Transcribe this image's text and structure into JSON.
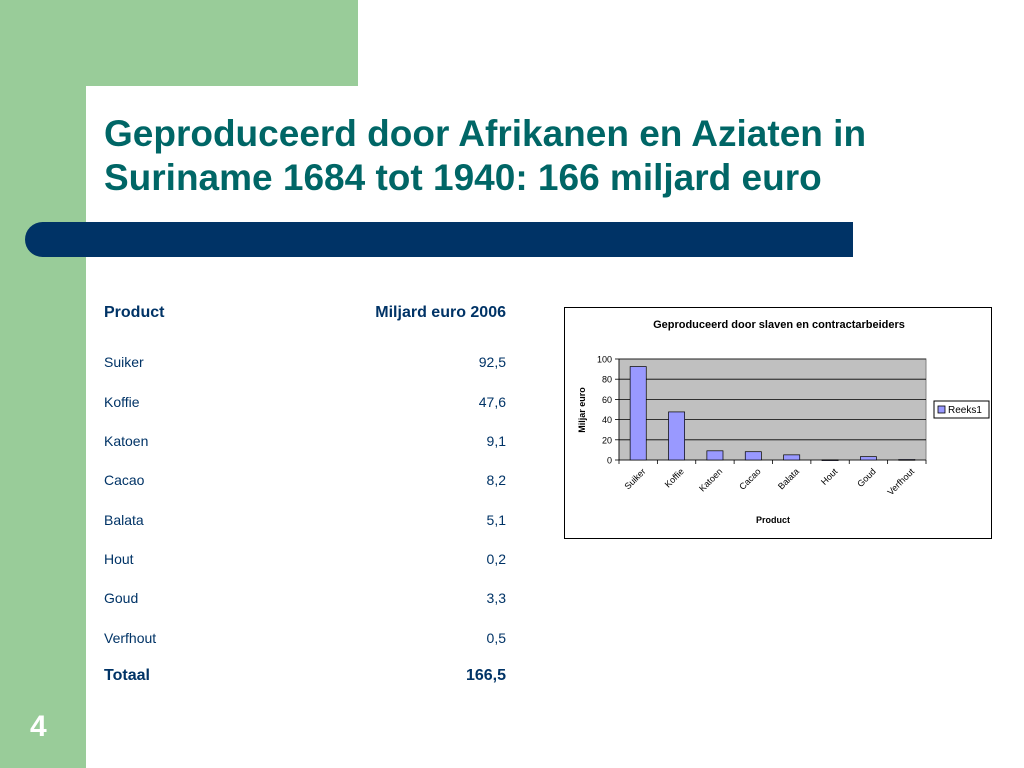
{
  "slide": {
    "title": "Geproduceerd door Afrikanen en Aziaten in Suriname 1684 tot 1940: 166 miljard euro",
    "page_number": "4"
  },
  "table": {
    "header": {
      "product": "Product",
      "value": "Miljard euro 2006"
    },
    "rows": [
      {
        "product": "Suiker",
        "value": "92,5"
      },
      {
        "product": "Koffie",
        "value": "47,6"
      },
      {
        "product": "Katoen",
        "value": "9,1"
      },
      {
        "product": "Cacao",
        "value": "8,2"
      },
      {
        "product": "Balata",
        "value": "5,1"
      },
      {
        "product": "Hout",
        "value": "0,2"
      },
      {
        "product": "Goud",
        "value": "3,3"
      },
      {
        "product": "Verfhout",
        "value": "0,5"
      }
    ],
    "total": {
      "label": "Totaal",
      "value": "166,5"
    }
  },
  "colors": {
    "accent_green": "#99cc99",
    "title_teal": "#006666",
    "band_navy": "#003366",
    "bar_fill": "#9999ff",
    "plot_bg": "#c0c0c0"
  },
  "chart_data": {
    "type": "bar",
    "title": "Geproduceerd door slaven en contractarbeiders",
    "xlabel": "Product",
    "ylabel": "Miljar euro",
    "categories": [
      "Suiker",
      "Koffie",
      "Katoen",
      "Cacao",
      "Balata",
      "Hout",
      "Goud",
      "Verfhout"
    ],
    "series": [
      {
        "name": "Reeks1",
        "values": [
          92.5,
          47.6,
          9.1,
          8.2,
          5.1,
          0.2,
          3.3,
          0.5
        ]
      }
    ],
    "ylim": [
      0,
      100
    ],
    "yticks": [
      "0",
      "20",
      "40",
      "60",
      "80",
      "100"
    ],
    "grid": true,
    "legend": "right"
  }
}
